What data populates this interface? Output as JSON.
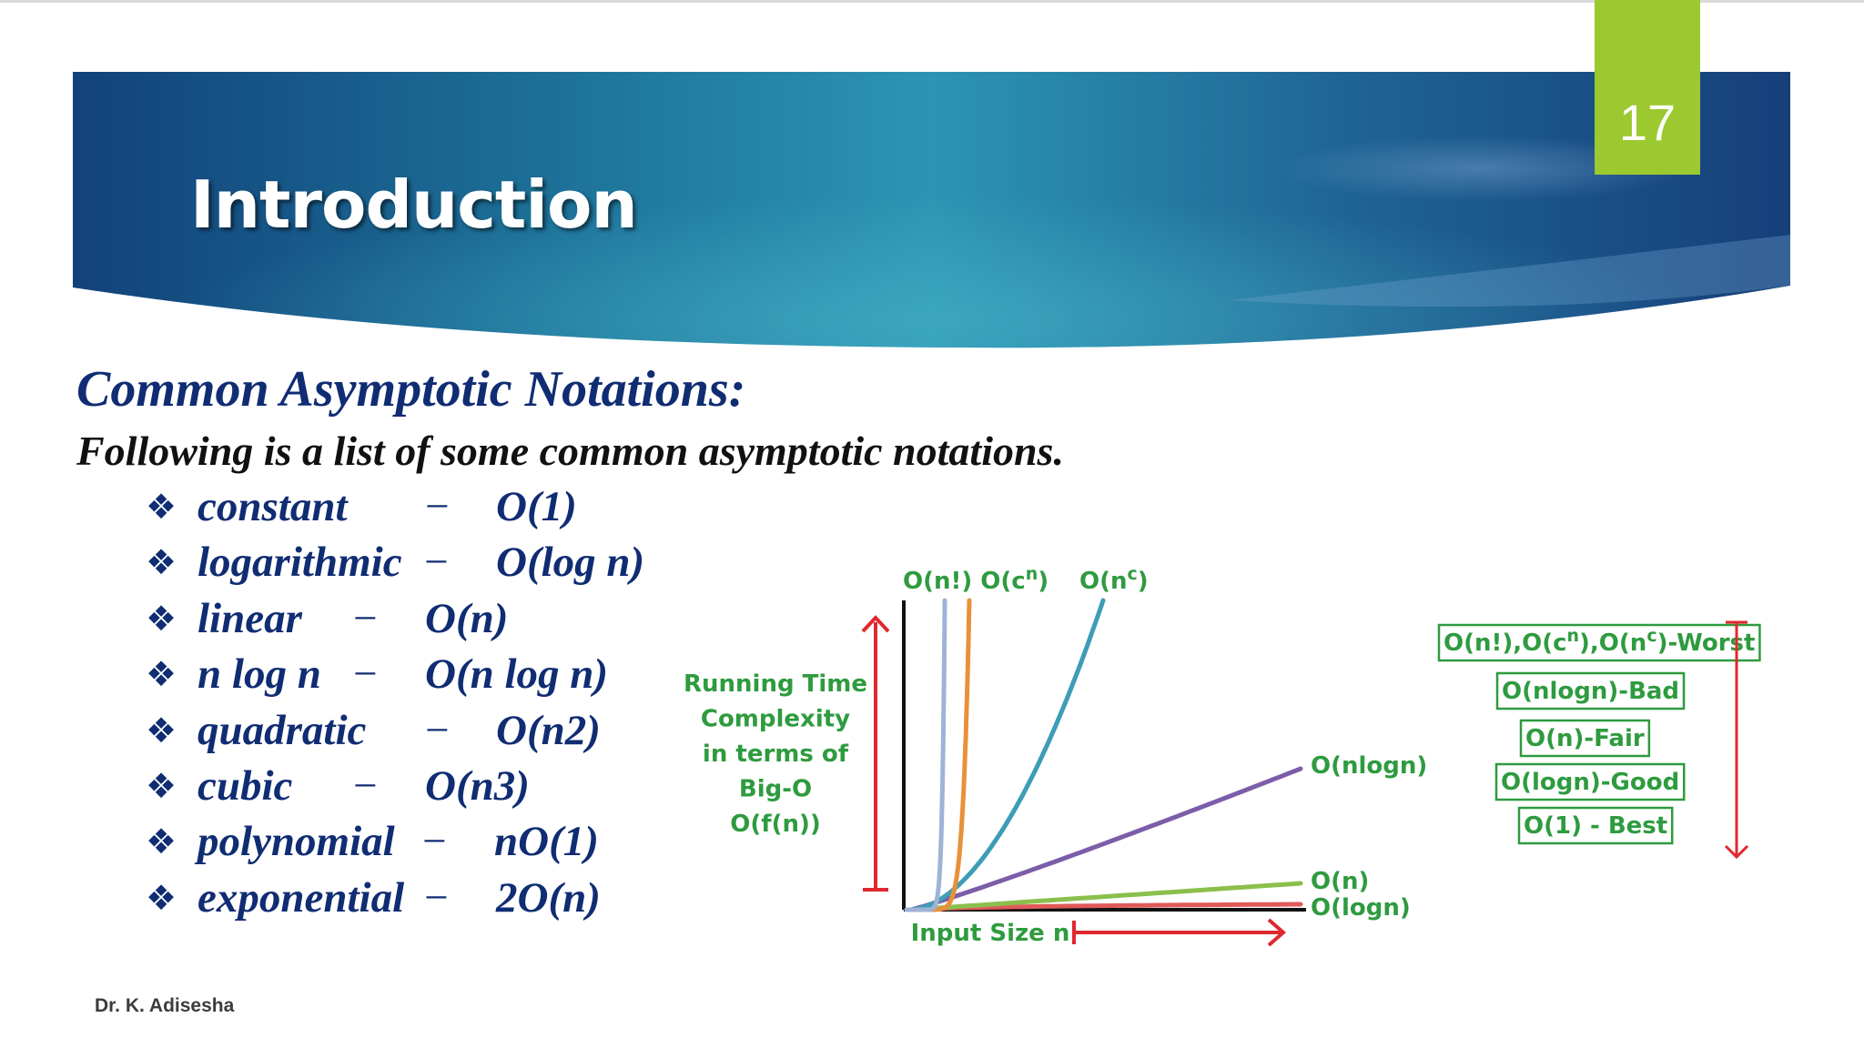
{
  "slide": {
    "page_number": "17",
    "title": "Introduction",
    "heading": "Common Asymptotic Notations:",
    "intro": "Following is a list of some common asymptotic notations.",
    "author": "Dr. K. Adisesha",
    "colors": {
      "banner_dark": "#0f3f77",
      "banner_light": "#2d9cb8",
      "page_badge": "#9bc92f",
      "text_blue": "#102d73",
      "chart_green_text": "#2e9b3f",
      "arrow_red": "#e0282f"
    },
    "bullet_icon": "diamond-bullet-icon",
    "notations": [
      {
        "bullet": "❖",
        "name": "constant",
        "dash": "−",
        "value": "O(1)"
      },
      {
        "bullet": "❖",
        "name": "logarithmic",
        "dash": "−",
        "value": "O(log n)"
      },
      {
        "bullet": "❖",
        "name": "linear",
        "dash": "−",
        "value": "O(n)"
      },
      {
        "bullet": "❖",
        "name": "n log n",
        "dash": "−",
        "value": "O(n log n)"
      },
      {
        "bullet": "❖",
        "name": "quadratic",
        "dash": "−",
        "value": "O(n2)"
      },
      {
        "bullet": "❖",
        "name": "cubic",
        "dash": "−",
        "value": "O(n3)"
      },
      {
        "bullet": "❖",
        "name": "polynomial",
        "dash": "−",
        "value": "nO(1)"
      },
      {
        "bullet": "❖",
        "name": "exponential",
        "dash": "−",
        "value": "2O(n)"
      }
    ]
  },
  "chart_data": {
    "type": "line",
    "ylabel_lines": [
      "Running Time",
      "Complexity",
      "in terms of",
      "Big-O",
      "O(f(n))"
    ],
    "xlabel": "Input Size n",
    "grid": false,
    "series": [
      {
        "name": "O(n!)",
        "color": "#9fb3d6",
        "growth": "factorial"
      },
      {
        "name": "O(c^n)",
        "color": "#e8913a",
        "growth": "exponential"
      },
      {
        "name": "O(n^c)",
        "color": "#3d9db6",
        "growth": "polynomial"
      },
      {
        "name": "O(nlogn)",
        "color": "#7b5da8",
        "growth": "linearithmic"
      },
      {
        "name": "O(n)",
        "color": "#8bbf4c",
        "growth": "linear"
      },
      {
        "name": "O(logn)",
        "color": "#e05a5a",
        "growth": "logarithmic"
      }
    ],
    "top_labels": {
      "factorial_exponential": {
        "prefix1": "O(n!) O(c",
        "sup1": "n",
        "suffix1": ")"
      },
      "polynomial": {
        "prefix": "O(n",
        "sup": "c",
        "suffix": ")"
      }
    },
    "end_labels": {
      "nlogn": "O(nlogn)",
      "n": "O(n)",
      "logn": "O(logn)"
    },
    "legend": [
      {
        "parts": [
          "O(n!),O(c",
          "n",
          "),O(n",
          "c",
          ")-Worst"
        ],
        "sup_indices": [
          1,
          3
        ]
      },
      {
        "parts": [
          "O(nlogn)-Bad"
        ],
        "sup_indices": []
      },
      {
        "parts": [
          "O(n)-Fair"
        ],
        "sup_indices": []
      },
      {
        "parts": [
          "O(logn)-Good"
        ],
        "sup_indices": []
      },
      {
        "parts": [
          "O(1) - Best"
        ],
        "sup_indices": []
      }
    ],
    "legend_placement": "right"
  }
}
